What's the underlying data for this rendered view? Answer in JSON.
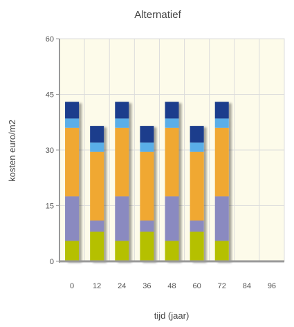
{
  "chart_data": {
    "type": "bar",
    "stacked": true,
    "title": "Alternatief",
    "xlabel": "tijd (jaar)",
    "ylabel": "kosten euro/m2",
    "categories": [
      "0",
      "12",
      "24",
      "36",
      "48",
      "60",
      "72",
      "84",
      "96"
    ],
    "y_ticks": [
      "0",
      "15",
      "30",
      "45",
      "60"
    ],
    "ylim": [
      0,
      60
    ],
    "grid": true,
    "series": [
      {
        "color": "#b5c000",
        "values": [
          5.5,
          8,
          5.5,
          8,
          5.5,
          8,
          5.5,
          0,
          0
        ]
      },
      {
        "color": "#8a8ac0",
        "values": [
          12,
          3,
          12,
          3,
          12,
          3,
          12,
          0,
          0
        ]
      },
      {
        "color": "#f0a830",
        "values": [
          18.5,
          18.5,
          18.5,
          18.5,
          18.5,
          18.5,
          18.5,
          0,
          0
        ]
      },
      {
        "color": "#5aaee8",
        "values": [
          2.5,
          2.5,
          2.5,
          2.5,
          2.5,
          2.5,
          2.5,
          0,
          0
        ]
      },
      {
        "color": "#1a3c8c",
        "values": [
          4.5,
          4.5,
          4.5,
          4.5,
          4.5,
          4.5,
          4.5,
          0,
          0
        ]
      }
    ],
    "colors": {
      "plot_background": "#fdfbea",
      "grid": "#dcdcdc",
      "axis": "#999999"
    }
  }
}
